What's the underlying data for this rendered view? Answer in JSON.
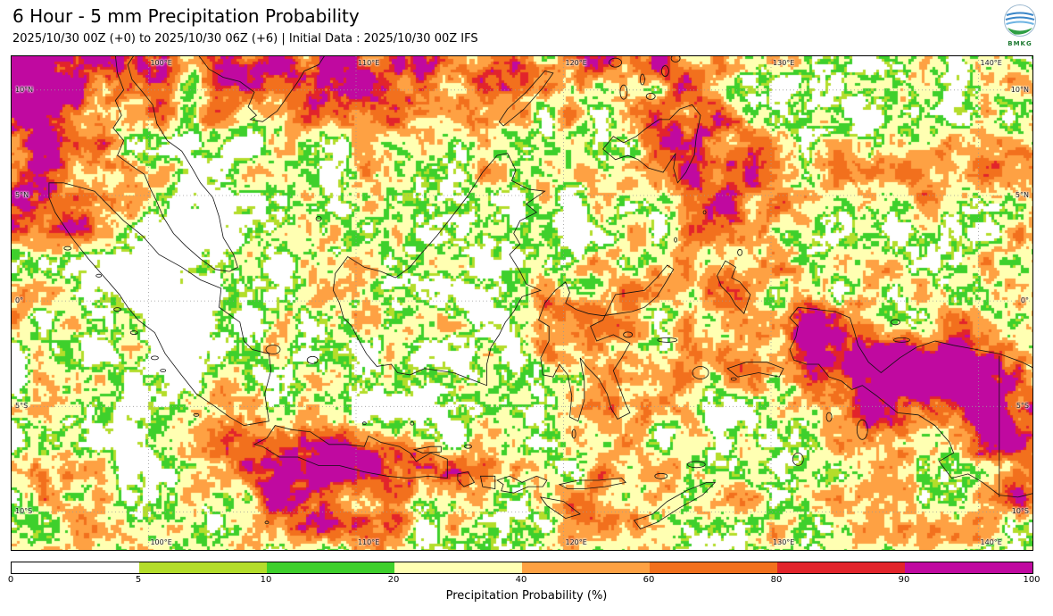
{
  "header": {
    "title": "6 Hour - 5 mm Precipitation Probability",
    "subtitle": "2025/10/30 00Z (+0) to 2025/10/30 06Z (+6) | Initial Data : 2025/10/30 00Z IFS",
    "logo": {
      "icon": "bmkg-logo",
      "text": "BMKG"
    }
  },
  "map": {
    "extent": {
      "lon_min": 93.4,
      "lon_max": 142.6,
      "lat_min": -11.8,
      "lat_max": 11.6
    },
    "grid": {
      "lon_values": [
        100,
        110,
        120,
        130,
        140
      ],
      "lon_labels": [
        "100°E",
        "110°E",
        "120°E",
        "130°E",
        "140°E"
      ],
      "lat_values": [
        10,
        5,
        0,
        -5,
        -10
      ],
      "lat_labels": [
        "10°N",
        "5°N",
        "0°",
        "5°S",
        "10°S"
      ]
    }
  },
  "colorbar": {
    "label": "Precipitation Probability (%)",
    "tick_labels": [
      "0",
      "5",
      "10",
      "20",
      "40",
      "60",
      "80",
      "90",
      "100"
    ],
    "segments": [
      {
        "range": "0-5",
        "color": "#ffffff"
      },
      {
        "range": "5-10",
        "color": "#b4dd2b"
      },
      {
        "range": "10-20",
        "color": "#3ed02c"
      },
      {
        "range": "20-40",
        "color": "#ffffb2"
      },
      {
        "range": "40-60",
        "color": "#fea143"
      },
      {
        "range": "60-80",
        "color": "#f2701d"
      },
      {
        "range": "80-90",
        "color": "#e2242b"
      },
      {
        "range": "90-100",
        "color": "#c009a0"
      }
    ]
  }
}
